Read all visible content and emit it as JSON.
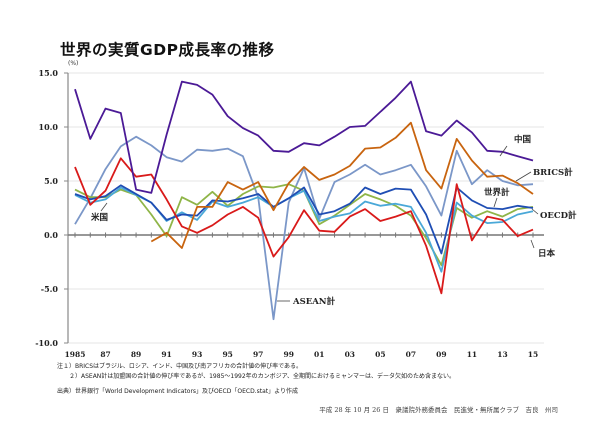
{
  "chart_data": {
    "type": "line",
    "title": "世界の実質GDP成長率の推移",
    "ylabel": "(%)",
    "xlabel": "",
    "ylim": [
      -10,
      15
    ],
    "yticks": [
      15,
      10,
      5,
      0,
      -5,
      -10
    ],
    "ytick_labels": [
      "15.0",
      "10.0",
      "5.0",
      "0.0",
      "-5.0",
      "-10.0"
    ],
    "x": [
      1985,
      1986,
      1987,
      1988,
      1989,
      1990,
      1991,
      1992,
      1993,
      1994,
      1995,
      1996,
      1997,
      1998,
      1999,
      2000,
      2001,
      2002,
      2003,
      2004,
      2005,
      2006,
      2007,
      2008,
      2009,
      2010,
      2011,
      2012,
      2013,
      2014,
      2015
    ],
    "xtick_values": [
      1985,
      1987,
      1989,
      1991,
      1993,
      1995,
      1997,
      1999,
      2001,
      2003,
      2005,
      2007,
      2009,
      2011,
      2013,
      2015
    ],
    "xtick_labels": [
      "1985",
      "87",
      "89",
      "91",
      "93",
      "95",
      "97",
      "99",
      "01",
      "03",
      "05",
      "07",
      "09",
      "11",
      "13",
      "15"
    ],
    "grid": true,
    "legend": "inline-labels",
    "series": [
      {
        "name": "中国",
        "color": "#4b1a96",
        "values": [
          13.5,
          8.9,
          11.7,
          11.3,
          4.2,
          3.9,
          9.3,
          14.2,
          13.9,
          13.0,
          11.0,
          9.9,
          9.2,
          7.8,
          7.7,
          8.5,
          8.3,
          9.1,
          10.0,
          10.1,
          11.4,
          12.7,
          14.2,
          9.6,
          9.2,
          10.6,
          9.5,
          7.8,
          7.7,
          7.3,
          6.9
        ]
      },
      {
        "name": "BRICS計",
        "color": "#c8640f",
        "values": [
          null,
          null,
          null,
          null,
          null,
          -0.6,
          0.2,
          -1.2,
          2.6,
          2.6,
          4.9,
          4.2,
          4.9,
          2.3,
          4.8,
          6.3,
          5.1,
          5.6,
          6.4,
          8.0,
          8.1,
          9.0,
          10.4,
          6.0,
          4.3,
          8.9,
          6.9,
          5.4,
          5.5,
          4.8,
          3.8
        ]
      },
      {
        "name": "ASEAN計",
        "color": "#7b97c8",
        "values": [
          1.0,
          3.4,
          6.1,
          8.2,
          9.1,
          8.3,
          7.2,
          6.8,
          7.9,
          7.8,
          8.0,
          7.3,
          3.5,
          -7.8,
          3.0,
          6.2,
          1.5,
          4.9,
          5.6,
          6.5,
          5.6,
          6.0,
          6.5,
          4.5,
          1.8,
          7.8,
          4.7,
          6.0,
          5.0,
          4.6,
          4.7
        ]
      },
      {
        "name": "世界計",
        "color": "#1f4eb4",
        "values": [
          3.8,
          3.3,
          3.6,
          4.6,
          3.8,
          3.0,
          1.4,
          1.9,
          1.8,
          3.2,
          3.1,
          3.4,
          3.8,
          2.6,
          3.4,
          4.4,
          1.9,
          2.2,
          2.9,
          4.4,
          3.8,
          4.3,
          4.2,
          1.9,
          -1.7,
          4.4,
          3.2,
          2.5,
          2.4,
          2.7,
          2.5
        ]
      },
      {
        "name": "OECD計",
        "color": "#4aa8d8",
        "values": [
          3.7,
          3.0,
          3.3,
          4.4,
          3.7,
          3.0,
          1.3,
          2.1,
          1.4,
          3.1,
          2.6,
          3.0,
          3.5,
          2.6,
          3.4,
          4.1,
          1.3,
          1.7,
          2.0,
          3.1,
          2.7,
          2.9,
          2.6,
          0.2,
          -3.4,
          3.0,
          1.8,
          1.1,
          1.2,
          1.9,
          2.2
        ]
      },
      {
        "name": "米国",
        "color": "#8fb548",
        "values": [
          4.2,
          3.5,
          3.5,
          4.2,
          3.7,
          1.9,
          -0.1,
          3.5,
          2.8,
          4.0,
          2.7,
          3.8,
          4.5,
          4.4,
          4.7,
          4.1,
          1.0,
          1.8,
          2.8,
          3.8,
          3.3,
          2.7,
          1.8,
          -0.3,
          -2.8,
          2.5,
          1.6,
          2.2,
          1.7,
          2.4,
          2.6
        ]
      },
      {
        "name": "日本",
        "color": "#d91a1a",
        "values": [
          6.3,
          2.8,
          4.1,
          7.1,
          5.4,
          5.6,
          3.3,
          0.8,
          0.2,
          0.9,
          1.9,
          2.6,
          1.6,
          -2.0,
          -0.2,
          2.3,
          0.4,
          0.3,
          1.7,
          2.4,
          1.3,
          1.7,
          2.2,
          -1.0,
          -5.4,
          4.7,
          -0.5,
          1.7,
          1.4,
          -0.1,
          0.5
        ]
      }
    ],
    "annotations": [
      "中国",
      "BRICS計",
      "世界計",
      "OECD計",
      "日本",
      "米国",
      "ASEAN計"
    ]
  },
  "notes": {
    "note1": "注１）BRICSはブラジル、ロシア、インド、中国及び南アフリカの合計値の伸び率である。",
    "note2": "２）ASEAN計は加盟国の合計値の伸び率であるが、1985～1992年のカンボジア、全期間におけるミャンマーは、データ欠如のため含まない。",
    "source": "出典）世界銀行「World Development Indicators」及びOECD「OECD.stat」より作成"
  },
  "footer": "平成 28 年 10 月 26 日　衆議院外務委員会　民進党・無所属クラブ　吉良　州司"
}
